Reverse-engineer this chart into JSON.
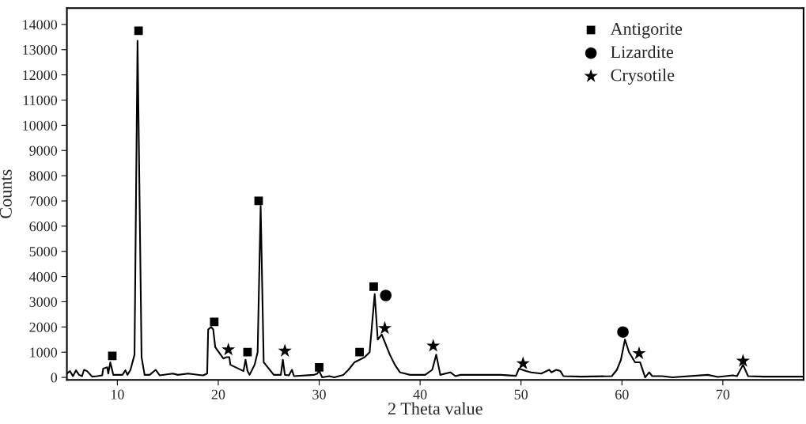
{
  "chart_data": {
    "type": "line",
    "xlabel": "2 Theta value",
    "ylabel": "Counts",
    "xlim": [
      5,
      78
    ],
    "xticks": [
      10,
      20,
      30,
      40,
      50,
      60,
      70
    ],
    "ylim": [
      -100,
      14650
    ],
    "yticks": [
      0,
      1000,
      2000,
      3000,
      4000,
      5000,
      6000,
      7000,
      8000,
      9000,
      10000,
      11000,
      12000,
      13000,
      14000
    ],
    "grid": false,
    "legend": "top right",
    "series": [
      {
        "color": "#000000",
        "marker": "none",
        "line_style": "solid",
        "x": [
          5.0,
          5.3,
          5.6,
          5.9,
          6.2,
          6.5,
          6.7,
          7.0,
          7.5,
          8.0,
          8.5,
          8.6,
          9.0,
          9.1,
          9.3,
          9.6,
          10.5,
          10.8,
          11.0,
          11.3,
          11.7,
          12.0,
          12.4,
          12.7,
          13.2,
          13.8,
          14.2,
          15.5,
          16.0,
          17.0,
          18.5,
          18.9,
          19.0,
          19.3,
          19.5,
          19.7,
          20.5,
          20.8,
          21.1,
          21.2,
          22.5,
          22.7,
          22.9,
          23.1,
          23.6,
          23.9,
          24.2,
          24.5,
          25.0,
          25.5,
          26.2,
          26.4,
          26.6,
          27.0,
          27.3,
          27.5,
          29.5,
          29.8,
          30.0,
          30.3,
          31.0,
          31.5,
          32.4,
          32.9,
          33.5,
          34.5,
          35.0,
          35.5,
          35.8,
          36.2,
          36.5,
          37.0,
          37.5,
          38.0,
          39.0,
          40.5,
          41.2,
          41.6,
          42.0,
          42.5,
          43.0,
          43.5,
          44.0,
          48.0,
          49.5,
          49.8,
          50.5,
          51.0,
          52.0,
          52.8,
          53.0,
          53.5,
          53.9,
          54.2,
          56.0,
          59.0,
          59.5,
          59.9,
          60.3,
          60.7,
          61.0,
          61.3,
          61.8,
          62.3,
          62.7,
          63.0,
          64.0,
          65.0,
          68.5,
          69.5,
          71.0,
          71.4,
          72.0,
          72.5,
          74.0,
          78.0
        ],
        "values": [
          150,
          250,
          50,
          280,
          100,
          50,
          300,
          250,
          30,
          50,
          80,
          350,
          400,
          150,
          600,
          100,
          100,
          280,
          100,
          300,
          900,
          13350,
          800,
          100,
          100,
          300,
          80,
          150,
          100,
          150,
          80,
          150,
          1900,
          2000,
          1900,
          1200,
          750,
          800,
          800,
          500,
          250,
          700,
          250,
          100,
          500,
          1000,
          6800,
          600,
          350,
          100,
          100,
          700,
          100,
          80,
          300,
          50,
          100,
          150,
          250,
          0,
          50,
          0,
          100,
          300,
          600,
          800,
          1000,
          3300,
          1500,
          1700,
          1400,
          900,
          500,
          200,
          100,
          100,
          300,
          900,
          100,
          150,
          200,
          50,
          100,
          100,
          60,
          350,
          250,
          200,
          150,
          300,
          200,
          300,
          250,
          50,
          30,
          50,
          300,
          700,
          1500,
          1000,
          800,
          600,
          600,
          0,
          200,
          50,
          50,
          0,
          100,
          20,
          80,
          50,
          500,
          50,
          30,
          30
        ]
      },
      {
        "type": "scatter",
        "name": "Antigorite",
        "color": "#000000",
        "marker": "square",
        "x": [
          9.5,
          12.1,
          19.6,
          22.9,
          24.0,
          30.0,
          34.0,
          35.4
        ],
        "values": [
          850,
          13750,
          2200,
          1000,
          7000,
          400,
          1000,
          3600
        ]
      },
      {
        "type": "scatter",
        "name": "Lizardite",
        "color": "#000000",
        "marker": "circle",
        "x": [
          36.6,
          60.1
        ],
        "values": [
          3250,
          1800
        ]
      },
      {
        "type": "scatter",
        "name": "Crysotile",
        "color": "#000000",
        "marker": "star",
        "x": [
          21.0,
          26.6,
          36.5,
          41.3,
          50.2,
          61.7,
          72.0
        ],
        "values": [
          1100,
          1050,
          1950,
          1250,
          550,
          950,
          650
        ]
      }
    ]
  }
}
